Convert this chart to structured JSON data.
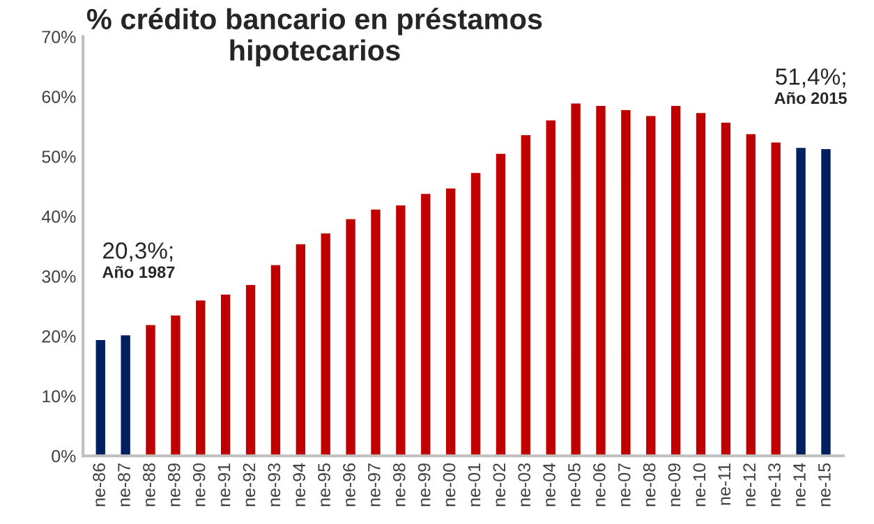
{
  "chart_data": {
    "type": "bar",
    "title": "% crédito bancario en préstamos\nhipotecarios",
    "categories": [
      "ne-86",
      "ne-87",
      "ne-88",
      "ne-89",
      "ne-90",
      "ne-91",
      "ne-92",
      "ne-93",
      "ne-94",
      "ne-95",
      "ne-96",
      "ne-97",
      "ne-98",
      "ne-99",
      "ne-00",
      "ne-01",
      "ne-02",
      "ne-03",
      "ne-04",
      "ne-05",
      "ne-06",
      "ne-07",
      "ne-08",
      "ne-09",
      "ne-10",
      "ne-11",
      "ne-12",
      "ne-13",
      "ne-14",
      "ne-15"
    ],
    "values": [
      19.5,
      20.3,
      22.0,
      23.6,
      26.1,
      27.1,
      28.7,
      32.0,
      35.5,
      37.3,
      39.7,
      41.3,
      42.0,
      43.9,
      44.8,
      47.4,
      50.6,
      53.7,
      56.2,
      59.0,
      58.6,
      57.9,
      56.9,
      58.6,
      57.4,
      55.8,
      53.9,
      52.5,
      51.6,
      51.4
    ],
    "colors": [
      "#002060",
      "#002060",
      "#c00000",
      "#c00000",
      "#c00000",
      "#c00000",
      "#c00000",
      "#c00000",
      "#c00000",
      "#c00000",
      "#c00000",
      "#c00000",
      "#c00000",
      "#c00000",
      "#c00000",
      "#c00000",
      "#c00000",
      "#c00000",
      "#c00000",
      "#c00000",
      "#c00000",
      "#c00000",
      "#c00000",
      "#c00000",
      "#c00000",
      "#c00000",
      "#c00000",
      "#c00000",
      "#002060",
      "#002060"
    ],
    "ylim": [
      0,
      70
    ],
    "yticks": [
      {
        "value": 0,
        "label": "0%"
      },
      {
        "value": 10,
        "label": "10%"
      },
      {
        "value": 20,
        "label": "20%"
      },
      {
        "value": 30,
        "label": "30%"
      },
      {
        "value": 40,
        "label": "40%"
      },
      {
        "value": 50,
        "label": "50%"
      },
      {
        "value": 60,
        "label": "60%"
      },
      {
        "value": 70,
        "label": "70%"
      }
    ],
    "annotations": [
      "20,3%;",
      "Año 1987",
      "51,4%;",
      "Año 2015"
    ],
    "grid": false,
    "legend": false
  }
}
